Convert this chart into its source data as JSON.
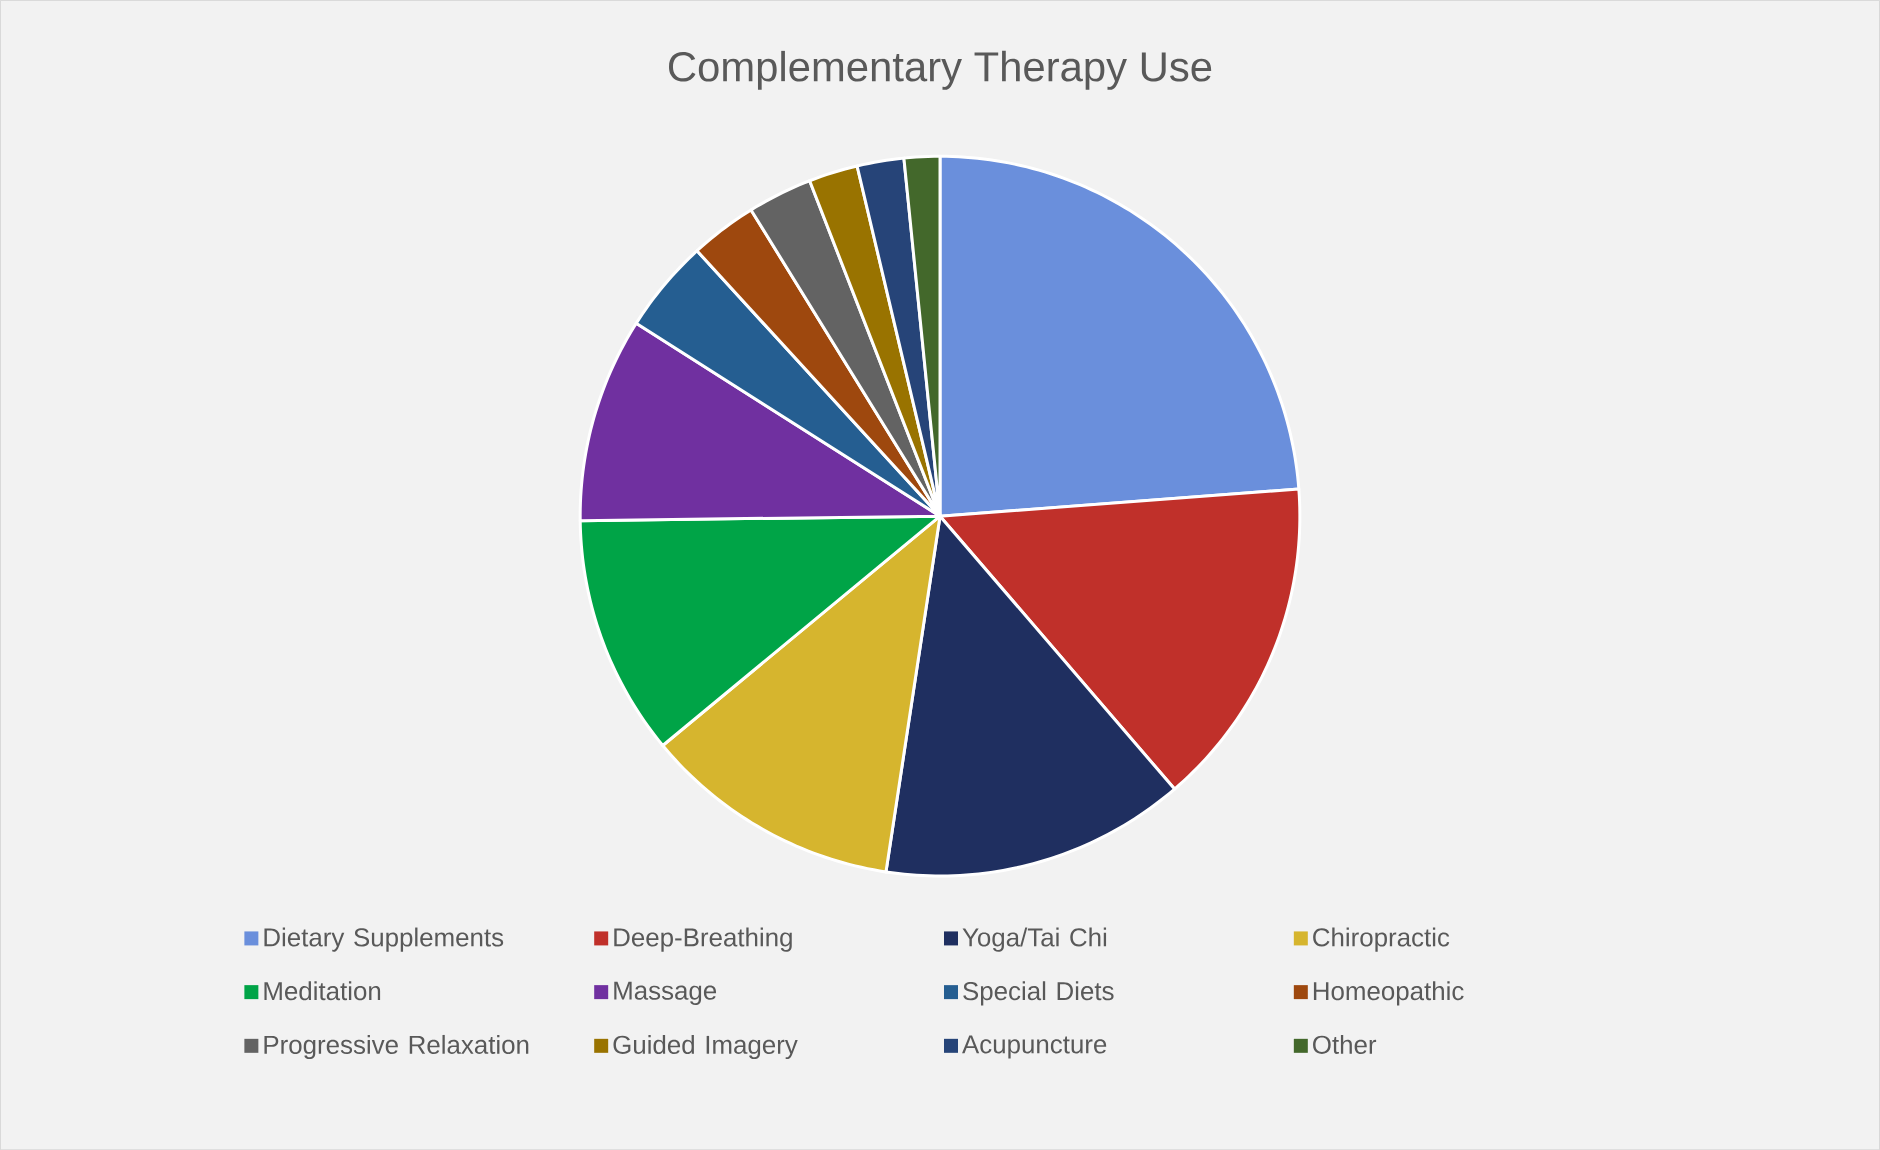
{
  "chart_data": {
    "type": "pie",
    "title": "Complementary Therapy Use",
    "categories": [
      "Dietary Supplements",
      "Deep-Breathing",
      "Yoga/Tai Chi",
      "Chiropractic",
      "Meditation",
      "Massage",
      "Special Diets",
      "Homeopathic",
      "Progressive Relaxation",
      "Guided Imagery",
      "Acupuncture",
      "Other"
    ],
    "values": [
      23.8,
      14.9,
      13.7,
      11.6,
      10.8,
      9.2,
      4.2,
      3.0,
      2.9,
      2.2,
      2.1,
      1.6
    ],
    "colors": [
      "#6a8fdc",
      "#c0302a",
      "#1f2f60",
      "#d6b52e",
      "#00a447",
      "#7030a0",
      "#255e91",
      "#9e480e",
      "#636363",
      "#997300",
      "#264478",
      "#43682b"
    ],
    "legend": "bottom"
  }
}
